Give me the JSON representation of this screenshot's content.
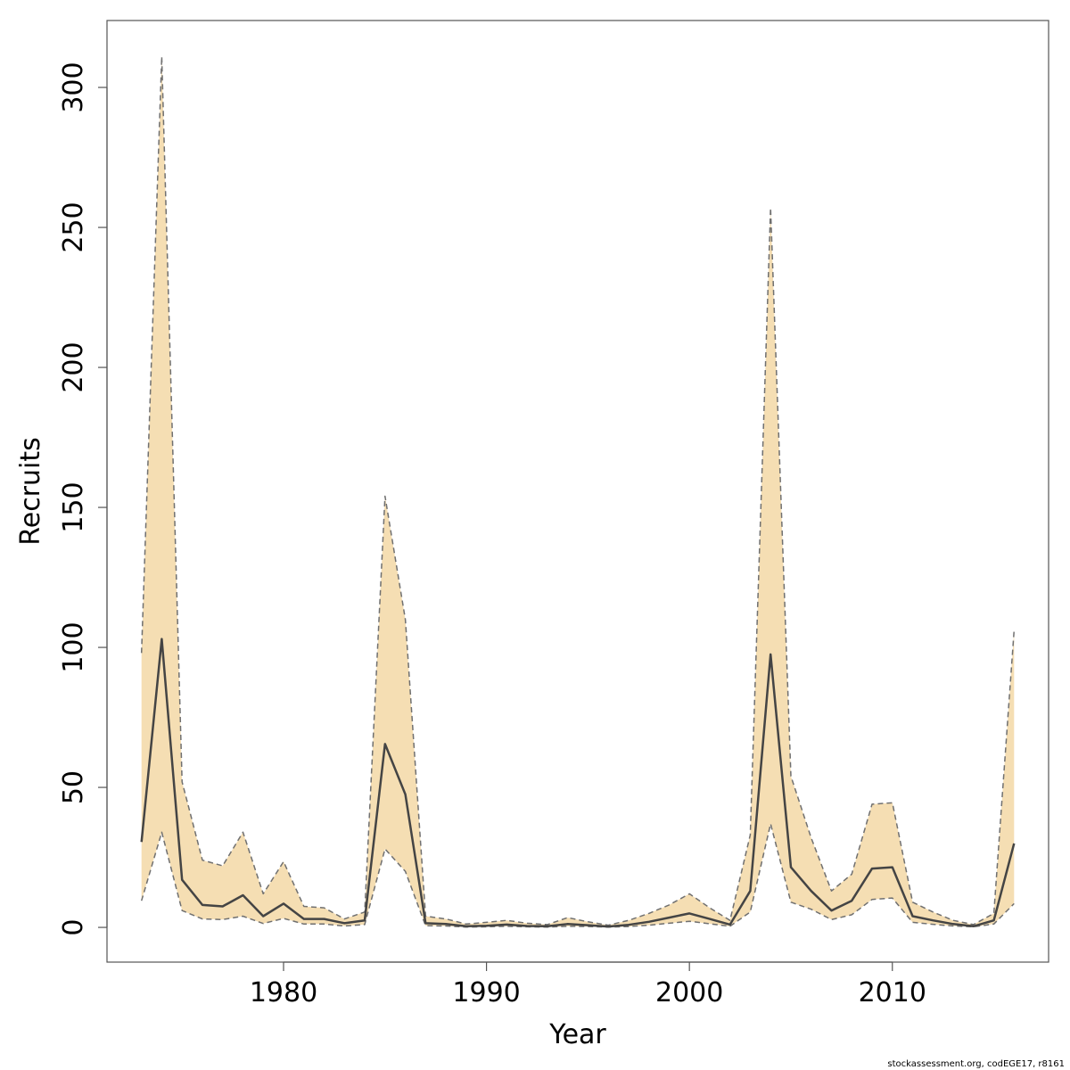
{
  "chart_data": {
    "type": "area",
    "title": "",
    "xlabel": "Year",
    "ylabel": "Recruits",
    "xlim": [
      1971.3,
      2017.7
    ],
    "ylim": [
      -12.4,
      323.9
    ],
    "x_ticks": [
      1980,
      1990,
      2000,
      2010
    ],
    "y_ticks": [
      0,
      50,
      100,
      150,
      200,
      250,
      300
    ],
    "grid": false,
    "legend": "none",
    "colors": {
      "band_fill": "#f5deb3",
      "band_edge": "#707070",
      "line": "#444444"
    },
    "x": [
      1973,
      1974,
      1975,
      1976,
      1977,
      1978,
      1979,
      1980,
      1981,
      1982,
      1983,
      1984,
      1985,
      1986,
      1987,
      1988,
      1989,
      1990,
      1991,
      1992,
      1993,
      1994,
      1995,
      1996,
      1997,
      1998,
      1999,
      2000,
      2001,
      2002,
      2003,
      2004,
      2005,
      2006,
      2007,
      2008,
      2009,
      2010,
      2011,
      2012,
      2013,
      2014,
      2015,
      2016
    ],
    "series": [
      {
        "role": "upper",
        "values": [
          98,
          311,
          52,
          24,
          22,
          34,
          12,
          23.5,
          7.5,
          7,
          3,
          5.5,
          154,
          110,
          4,
          3,
          1.2,
          1.8,
          2.5,
          1.5,
          1,
          3.5,
          2,
          0.8,
          2.5,
          5,
          8,
          12,
          7,
          2.5,
          33,
          257,
          54,
          32,
          13,
          19,
          44,
          44.5,
          9,
          5.5,
          2.5,
          1,
          5,
          106
        ]
      },
      {
        "role": "estimate",
        "values": [
          30.5,
          103,
          17,
          8,
          7.5,
          11.5,
          4,
          8.5,
          3,
          3,
          1.5,
          2.5,
          65.5,
          47.5,
          1.5,
          1.2,
          0.4,
          0.6,
          1,
          0.5,
          0.4,
          1.2,
          0.8,
          0.3,
          0.9,
          2,
          3.5,
          5,
          3,
          1,
          13,
          97.5,
          21.5,
          13,
          6,
          9.5,
          21,
          21.5,
          4,
          2.5,
          1.2,
          0.4,
          2.5,
          30
        ]
      },
      {
        "role": "lower",
        "values": [
          9.5,
          34,
          6,
          3,
          2.8,
          4,
          1.4,
          3.2,
          1.2,
          1.2,
          0.5,
          1,
          28,
          20,
          0.6,
          0.5,
          0.1,
          0.2,
          0.4,
          0.2,
          0.1,
          0.4,
          0.3,
          0.1,
          0.3,
          0.8,
          1.5,
          2.2,
          1.3,
          0.4,
          5.5,
          37,
          9,
          6.5,
          2.8,
          4.5,
          10,
          10.5,
          1.8,
          1.1,
          0.5,
          0.2,
          1.2,
          8.5
        ]
      }
    ]
  },
  "footer": {
    "text": "stockassessment.org, codEGE17, r8161"
  }
}
